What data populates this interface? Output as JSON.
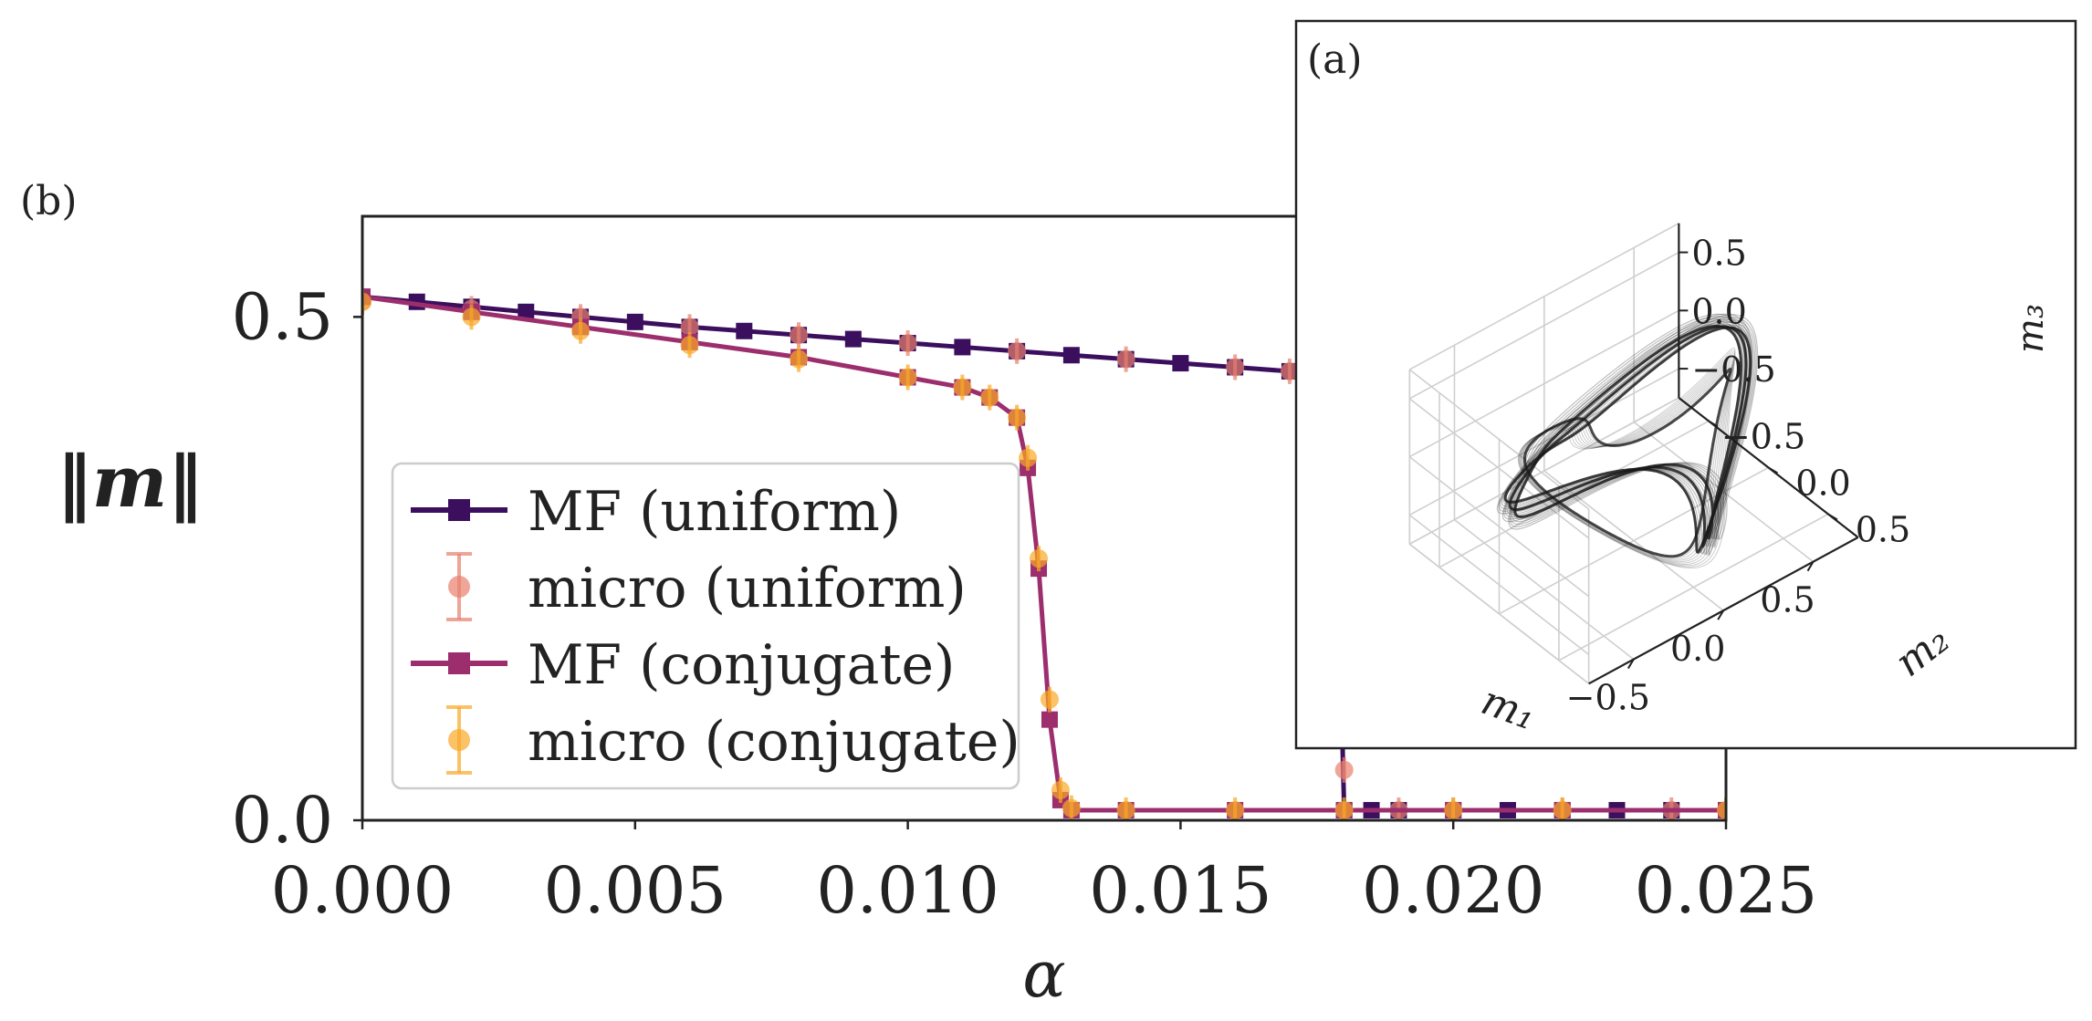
{
  "chart_data": [
    {
      "panel": "(b)",
      "type": "line",
      "xlabel": "α",
      "ylabel": "‖m‖",
      "xlim": [
        0,
        0.025
      ],
      "ylim": [
        0,
        0.6
      ],
      "xticks": [
        "0.000",
        "0.005",
        "0.010",
        "0.015",
        "0.020",
        "0.025"
      ],
      "yticks": [
        "0.0",
        "0.5"
      ],
      "grid": false,
      "legend_position": "lower-left",
      "series": [
        {
          "name": "MF (uniform)",
          "style": "line+square",
          "color": "#3b0f5e",
          "x": [
            0,
            0.001,
            0.002,
            0.003,
            0.004,
            0.005,
            0.006,
            0.007,
            0.008,
            0.009,
            0.01,
            0.011,
            0.012,
            0.013,
            0.014,
            0.015,
            0.016,
            0.017,
            0.0175,
            0.0178,
            0.018,
            0.0185,
            0.019,
            0.02,
            0.021,
            0.022,
            0.023,
            0.024,
            0.025
          ],
          "y": [
            0.52,
            0.515,
            0.51,
            0.505,
            0.5,
            0.495,
            0.49,
            0.486,
            0.482,
            0.478,
            0.474,
            0.47,
            0.466,
            0.462,
            0.458,
            0.454,
            0.45,
            0.446,
            0.444,
            0.443,
            0.01,
            0.01,
            0.01,
            0.01,
            0.01,
            0.01,
            0.01,
            0.01,
            0.01
          ]
        },
        {
          "name": "micro (uniform)",
          "style": "points+errorbars",
          "color": "#e8806e",
          "x": [
            0,
            0.002,
            0.004,
            0.006,
            0.008,
            0.01,
            0.012,
            0.014,
            0.016,
            0.017,
            0.0175,
            0.018,
            0.019,
            0.02,
            0.022,
            0.024,
            0.025
          ],
          "y": [
            0.515,
            0.508,
            0.5,
            0.49,
            0.482,
            0.474,
            0.466,
            0.458,
            0.45,
            0.446,
            0.1,
            0.05,
            0.01,
            0.01,
            0.01,
            0.01,
            0.01
          ]
        },
        {
          "name": "MF (conjugate)",
          "style": "line+square",
          "color": "#9c2e6e",
          "x": [
            0,
            0.002,
            0.004,
            0.006,
            0.008,
            0.01,
            0.011,
            0.0115,
            0.012,
            0.0122,
            0.0124,
            0.0126,
            0.0128,
            0.013,
            0.014,
            0.016,
            0.018,
            0.02,
            0.022,
            0.025
          ],
          "y": [
            0.52,
            0.505,
            0.49,
            0.475,
            0.46,
            0.44,
            0.43,
            0.42,
            0.4,
            0.35,
            0.25,
            0.1,
            0.02,
            0.01,
            0.01,
            0.01,
            0.01,
            0.01,
            0.01,
            0.01
          ]
        },
        {
          "name": "micro (conjugate)",
          "style": "points+errorbars",
          "color": "#f9a826",
          "x": [
            0,
            0.002,
            0.004,
            0.006,
            0.008,
            0.01,
            0.011,
            0.0115,
            0.012,
            0.0122,
            0.0124,
            0.0126,
            0.0128,
            0.013,
            0.014,
            0.016,
            0.018,
            0.02,
            0.022,
            0.025
          ],
          "y": [
            0.515,
            0.5,
            0.486,
            0.472,
            0.458,
            0.44,
            0.43,
            0.42,
            0.4,
            0.36,
            0.26,
            0.12,
            0.03,
            0.012,
            0.01,
            0.01,
            0.01,
            0.01,
            0.01,
            0.01
          ]
        }
      ]
    },
    {
      "panel": "(a)",
      "type": "scatter",
      "projection": "3d",
      "xlabel": "m₁",
      "ylabel": "m₂",
      "zlabel": "m₃",
      "xticks": [
        "−0.5",
        "0.0",
        "0.5"
      ],
      "yticks": [
        "−0.5",
        "0.0",
        "0.5"
      ],
      "zticks": [
        "−0.5",
        "0.0",
        "0.5"
      ],
      "xlim": [
        -0.75,
        0.75
      ],
      "ylim": [
        -0.75,
        0.75
      ],
      "zlim": [
        -0.75,
        0.75
      ],
      "grid": true,
      "point_color": "#1a1a1a"
    }
  ]
}
